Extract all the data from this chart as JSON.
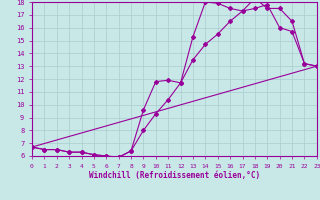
{
  "xlabel": "Windchill (Refroidissement éolien,°C)",
  "bg_color": "#c8e8e8",
  "line_color": "#990099",
  "grid_color": "#aacccc",
  "xmin": 0,
  "xmax": 23,
  "ymin": 6,
  "ymax": 18,
  "line1_x": [
    0,
    1,
    2,
    3,
    4,
    5,
    6,
    7,
    8,
    9,
    10,
    11,
    12,
    13,
    14,
    15,
    16,
    17,
    18,
    19,
    20,
    21,
    22,
    23
  ],
  "line1_y": [
    6.7,
    6.5,
    6.5,
    6.3,
    6.3,
    6.1,
    6.0,
    5.9,
    6.4,
    9.6,
    11.8,
    11.9,
    11.7,
    15.3,
    18.0,
    17.9,
    17.5,
    17.3,
    18.3,
    17.5,
    17.5,
    16.5,
    13.2,
    13.0
  ],
  "line2_x": [
    0,
    1,
    2,
    3,
    4,
    5,
    6,
    7,
    8,
    9,
    10,
    11,
    12,
    13,
    14,
    15,
    16,
    17,
    18,
    19,
    20,
    21,
    22,
    23
  ],
  "line2_y": [
    6.7,
    6.5,
    6.5,
    6.3,
    6.3,
    6.1,
    6.0,
    5.9,
    6.4,
    8.0,
    9.3,
    10.4,
    11.7,
    13.5,
    14.7,
    15.5,
    16.5,
    17.3,
    17.5,
    17.8,
    16.0,
    15.7,
    13.2,
    13.0
  ],
  "line3_x": [
    0,
    23
  ],
  "line3_y": [
    6.7,
    13.0
  ]
}
